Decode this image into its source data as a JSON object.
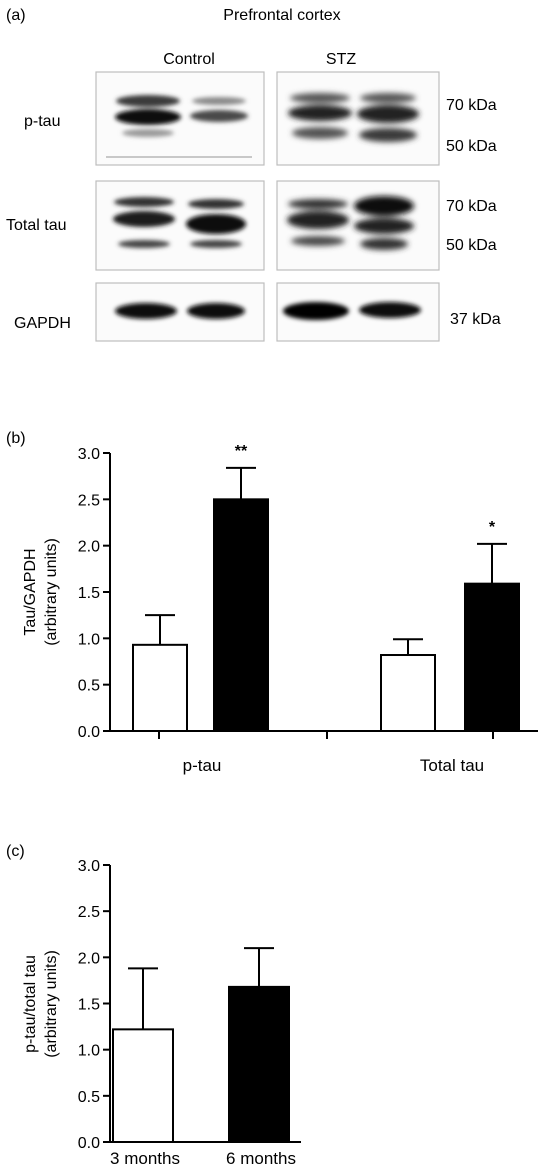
{
  "panel_a": {
    "label": "(a)",
    "title": "Prefrontal cortex",
    "groups": [
      "Control",
      "STZ"
    ],
    "rows": [
      {
        "label": "p-tau",
        "markers": [
          "70 kDa",
          "50 kDa"
        ]
      },
      {
        "label": "Total tau",
        "markers": [
          "70 kDa",
          "50 kDa"
        ]
      },
      {
        "label": "GAPDH",
        "markers": [
          "37 kDa"
        ]
      }
    ]
  },
  "chart_data": [
    {
      "panel": "(b)",
      "type": "bar",
      "ylabel": "Tau/GAPDH\n(arbitrary units)",
      "xlabel": "",
      "categories": [
        "p-tau",
        "Total tau"
      ],
      "ylim": [
        0,
        3.0
      ],
      "yticks": [
        "0.0",
        "0.5",
        "1.0",
        "1.5",
        "2.0",
        "2.5",
        "3.0"
      ],
      "grid": false,
      "series": [
        {
          "fill": "#ffffff",
          "values": [
            0.93,
            0.82
          ],
          "errors": [
            0.32,
            0.17
          ]
        },
        {
          "fill": "#000000",
          "values": [
            2.5,
            1.59
          ],
          "errors": [
            0.34,
            0.43
          ]
        }
      ],
      "annotations": [
        "**",
        "*"
      ]
    },
    {
      "panel": "(c)",
      "type": "bar",
      "ylabel": "p-tau/total tau\n(arbitrary units)",
      "xlabel": "",
      "categories": [
        "3 months",
        "6 months"
      ],
      "ylim": [
        0,
        3.0
      ],
      "yticks": [
        "0.0",
        "0.5",
        "1.0",
        "1.5",
        "2.0",
        "2.5",
        "3.0"
      ],
      "grid": false,
      "values": [
        1.22,
        1.68
      ],
      "errors": [
        0.66,
        0.42
      ],
      "fills": [
        "#ffffff",
        "#000000"
      ]
    }
  ]
}
